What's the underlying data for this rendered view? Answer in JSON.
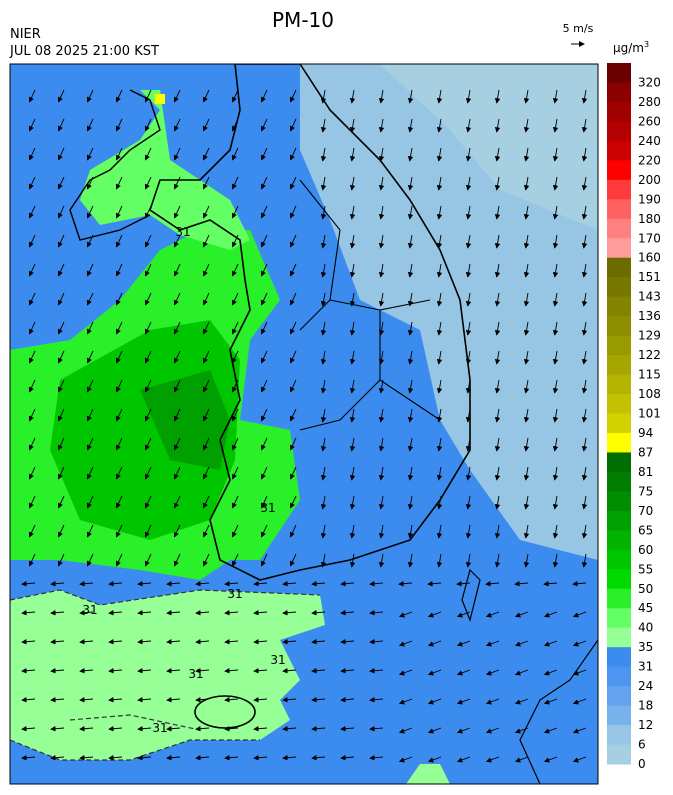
{
  "header": {
    "title": "PM-10",
    "agency": "NIER",
    "datetime": "JUL 08 2025 21:00 KST",
    "wind_scale": "5 m/s",
    "unit": "μg/m",
    "unit_exp": "3"
  },
  "colorbar": {
    "ticks": [
      320,
      280,
      260,
      240,
      220,
      200,
      190,
      180,
      170,
      160,
      151,
      143,
      136,
      129,
      122,
      115,
      108,
      101,
      94,
      87,
      81,
      75,
      70,
      65,
      60,
      55,
      50,
      45,
      40,
      35,
      31,
      24,
      18,
      12,
      6,
      0
    ],
    "colors": [
      "#6b0000",
      "#8b0000",
      "#a00000",
      "#b40000",
      "#cc0000",
      "#ff0000",
      "#ff3a3a",
      "#ff6060",
      "#ff8080",
      "#ff9c9c",
      "#6b6b00",
      "#787800",
      "#838300",
      "#8e8e00",
      "#999900",
      "#a6a600",
      "#b4b400",
      "#c2c200",
      "#d2d200",
      "#ffff00",
      "#006e00",
      "#007c00",
      "#008e00",
      "#00a000",
      "#00b400",
      "#00c600",
      "#00da00",
      "#2af02a",
      "#64ff64",
      "#96ff96",
      "#3c8cf0",
      "#4c96f0",
      "#62a2ee",
      "#78b2ec",
      "#96c6e4",
      "#a6cfe2"
    ]
  },
  "contour_labels": [
    "31",
    "31",
    "31",
    "31",
    "31",
    "31",
    "31"
  ]
}
